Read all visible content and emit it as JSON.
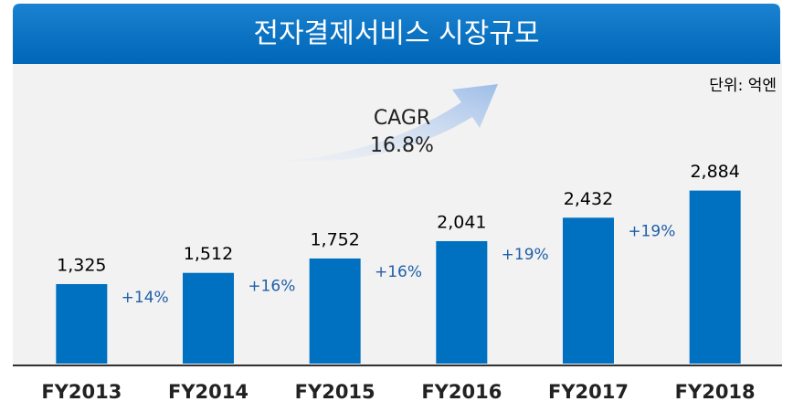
{
  "chart_data": {
    "type": "bar",
    "title": "전자결제서비스 시장규모",
    "unit_label": "단위: 억엔",
    "annotation": [
      "CAGR",
      "16.8%"
    ],
    "categories": [
      "FY2013",
      "FY2014",
      "FY2015",
      "FY2016",
      "FY2017",
      "FY2018"
    ],
    "values": [
      1325,
      1512,
      1752,
      2041,
      2432,
      2884
    ],
    "value_labels": [
      "1,325",
      "1,512",
      "1,752",
      "2,041",
      "2,432",
      "2,884"
    ],
    "growth_labels": [
      "+14%",
      "+16%",
      "+16%",
      "+19%",
      "+19%"
    ],
    "color": "#0070c0",
    "ylim": [
      0,
      3000
    ]
  }
}
